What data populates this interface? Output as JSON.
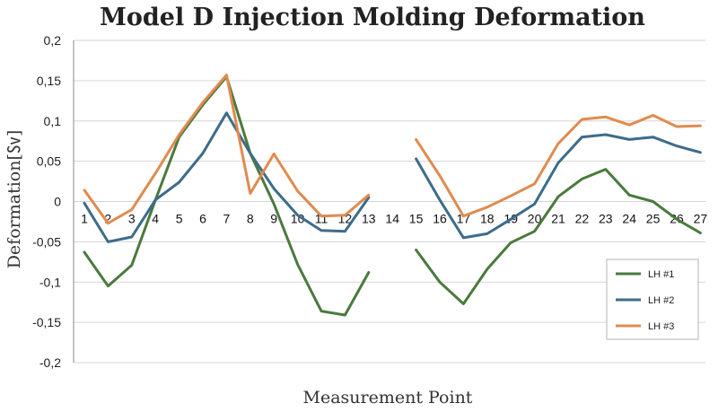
{
  "chart_data": {
    "type": "line",
    "title": "Model D Injection Molding Deformation",
    "xlabel": "Measurement Point",
    "ylabel": "Deformation[㏜]",
    "ylim": [
      -0.2,
      0.2
    ],
    "yticks": [
      0.2,
      0.15,
      0.1,
      0.05,
      0,
      -0.05,
      -0.1,
      -0.15,
      -0.2
    ],
    "ytick_labels": [
      "0,2",
      "0,15",
      "0,1",
      "0,05",
      "0",
      "-0,05",
      "-0,1",
      "-0,15",
      "-0,2"
    ],
    "categories": [
      "1",
      "2",
      "3",
      "4",
      "5",
      "6",
      "7",
      "8",
      "9",
      "10",
      "11",
      "12",
      "13",
      "14",
      "15",
      "16",
      "17",
      "18",
      "19",
      "20",
      "21",
      "22",
      "23",
      "24",
      "25",
      "26",
      "27"
    ],
    "grid": true,
    "legend_position": "bottom-right",
    "series": [
      {
        "name": "LH #1",
        "color": "#4a7a3d",
        "values": [
          -0.063,
          -0.105,
          -0.079,
          0.002,
          0.08,
          0.12,
          0.155,
          0.06,
          -0.003,
          -0.078,
          -0.136,
          -0.141,
          -0.088,
          null,
          -0.06,
          -0.1,
          -0.127,
          -0.084,
          -0.051,
          -0.037,
          0.006,
          0.028,
          0.04,
          0.008,
          0.0,
          -0.022,
          -0.039
        ]
      },
      {
        "name": "LH #2",
        "color": "#3d6c8a",
        "values": [
          -0.002,
          -0.05,
          -0.044,
          0.002,
          0.024,
          0.06,
          0.11,
          0.06,
          0.016,
          -0.017,
          -0.036,
          -0.037,
          0.005,
          null,
          0.053,
          0.002,
          -0.045,
          -0.04,
          -0.022,
          -0.003,
          0.048,
          0.08,
          0.083,
          0.077,
          0.08,
          0.069,
          0.061
        ]
      },
      {
        "name": "LH #3",
        "color": "#e08b4f",
        "values": [
          0.014,
          -0.027,
          -0.01,
          0.035,
          0.083,
          0.123,
          0.157,
          0.01,
          0.059,
          0.013,
          -0.018,
          -0.017,
          0.008,
          null,
          0.077,
          0.032,
          -0.018,
          -0.007,
          0.007,
          0.022,
          0.072,
          0.102,
          0.105,
          0.095,
          0.107,
          0.093,
          0.094
        ]
      }
    ]
  }
}
